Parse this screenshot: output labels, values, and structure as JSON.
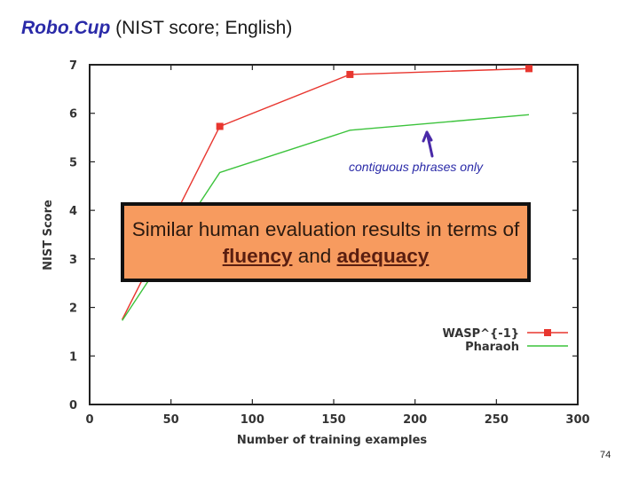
{
  "slide": {
    "title_brand": "Robo.Cup",
    "title_rest": " (NIST score; English)",
    "page_number": "74"
  },
  "callout": {
    "text_pre": "Similar human evaluation results in terms of ",
    "word1": "fluency",
    "text_mid": " and ",
    "word2": "adequacy"
  },
  "chart_data": {
    "type": "line",
    "xlabel": "Number of training examples",
    "ylabel": "NIST Score",
    "xlim": [
      0,
      300
    ],
    "ylim": [
      0,
      7
    ],
    "x_ticks": [
      "0",
      "50",
      "100",
      "150",
      "200",
      "250",
      "300"
    ],
    "y_ticks": [
      "0",
      "1",
      "2",
      "3",
      "4",
      "5",
      "6",
      "7"
    ],
    "legend_position": "bottom-right",
    "grid": false,
    "annotation": "contiguous phrases only",
    "series": [
      {
        "name": "WASP^{-1}",
        "color": "#e8362f",
        "marker": "square",
        "x": [
          20,
          80,
          160,
          270
        ],
        "y": [
          1.75,
          5.73,
          6.8,
          6.92
        ]
      },
      {
        "name": "Pharaoh",
        "color": "#3cc33c",
        "marker": "none",
        "x": [
          20,
          80,
          160,
          270
        ],
        "y": [
          1.73,
          4.78,
          5.65,
          5.97
        ]
      }
    ]
  }
}
